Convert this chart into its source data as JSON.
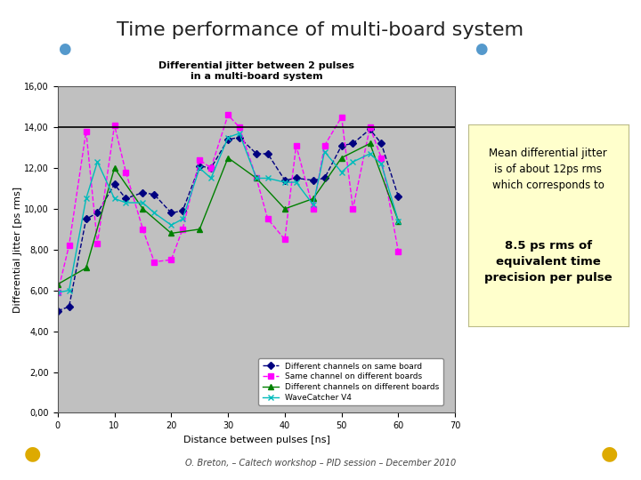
{
  "title": "Time performance of multi-board system",
  "chart_title_line1": "Differential jitter between 2 pulses",
  "chart_title_line2": "in a multi-board system",
  "xlabel": "Distance between pulses [ns]",
  "ylabel": "Differential Jitter [ps rms]",
  "xlim": [
    0,
    70
  ],
  "ylim": [
    0,
    16
  ],
  "yticks": [
    0,
    2,
    4,
    6,
    8,
    10,
    12,
    14,
    16
  ],
  "ytick_labels": [
    "0,00",
    "2,00",
    "4,00",
    "6,00",
    "8,00",
    "10,00",
    "12,00",
    "14,00",
    "16,00"
  ],
  "xticks": [
    0,
    10,
    20,
    30,
    40,
    50,
    60,
    70
  ],
  "hline_y": 14.0,
  "hline_color": "#000000",
  "bg_color": "#ffffff",
  "plot_bg_color": "#c0c0c0",
  "annotation_bg": "#ffffcc",
  "footer_text": "O. Breton, – Caltech workshop – PID session – December 2010",
  "title_bar_color": "#5599cc",
  "blue_dot_color": "#5599cc",
  "gold_dot_color": "#ddaa00",
  "series": [
    {
      "label": "Different channels on same board",
      "color": "#000080",
      "marker": "D",
      "linestyle": "--",
      "x": [
        0,
        2,
        5,
        7,
        10,
        12,
        15,
        17,
        20,
        22,
        25,
        27,
        30,
        32,
        35,
        37,
        40,
        42,
        45,
        47,
        50,
        52,
        55,
        57,
        60
      ],
      "y": [
        5.0,
        5.2,
        9.5,
        9.8,
        11.2,
        10.5,
        10.8,
        10.7,
        9.8,
        9.9,
        12.1,
        12.0,
        13.4,
        13.5,
        12.7,
        12.7,
        11.4,
        11.5,
        11.4,
        11.5,
        13.1,
        13.2,
        13.9,
        13.2,
        10.6
      ]
    },
    {
      "label": "Same channel on different boards",
      "color": "#ff00ff",
      "marker": "s",
      "linestyle": "--",
      "x": [
        0,
        2,
        5,
        7,
        10,
        12,
        15,
        17,
        20,
        22,
        25,
        27,
        30,
        32,
        35,
        37,
        40,
        42,
        45,
        47,
        50,
        52,
        55,
        57,
        60
      ],
      "y": [
        5.9,
        8.2,
        13.8,
        8.3,
        14.1,
        11.8,
        9.0,
        7.4,
        7.5,
        9.0,
        12.4,
        12.0,
        14.6,
        14.0,
        11.5,
        9.5,
        8.5,
        13.1,
        10.0,
        13.1,
        14.5,
        10.0,
        14.0,
        12.5,
        7.9
      ]
    },
    {
      "label": "Different channels on different boards",
      "color": "#008000",
      "marker": "^",
      "linestyle": "-",
      "x": [
        0,
        5,
        10,
        15,
        20,
        25,
        30,
        35,
        40,
        45,
        50,
        55,
        60
      ],
      "y": [
        6.3,
        7.1,
        12.0,
        10.0,
        8.8,
        9.0,
        12.5,
        11.5,
        10.0,
        10.5,
        12.5,
        13.2,
        9.4
      ]
    },
    {
      "label": "WaveCatcher V4",
      "color": "#00bbbb",
      "marker": "x",
      "linestyle": "-",
      "x": [
        0,
        2,
        5,
        7,
        10,
        12,
        15,
        17,
        20,
        22,
        25,
        27,
        30,
        32,
        35,
        37,
        40,
        42,
        45,
        47,
        50,
        52,
        55,
        57,
        60
      ],
      "y": [
        5.9,
        6.0,
        10.5,
        12.3,
        10.5,
        10.3,
        10.3,
        9.8,
        9.2,
        9.5,
        12.0,
        11.5,
        13.5,
        13.7,
        11.5,
        11.5,
        11.3,
        11.3,
        10.2,
        12.8,
        11.8,
        12.3,
        12.7,
        12.2,
        9.4
      ]
    }
  ]
}
